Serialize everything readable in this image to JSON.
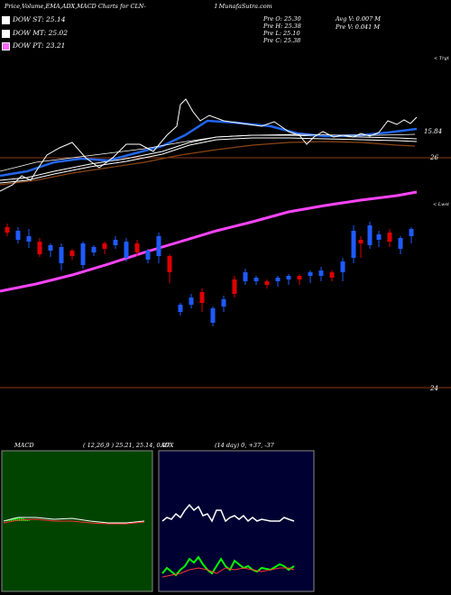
{
  "header": {
    "title_left": "Price,Volume,EMA,ADX,MACD Charts for CLN-",
    "title_right": "I MunafaSutra.com",
    "ohlc": {
      "open": "Pre  O: 25.30",
      "high": "Pre  H: 25.38",
      "low": "Pre  L: 25.10",
      "close": "Pre  C: 25.38"
    },
    "volume": {
      "avg": "Avg V: 0.007 M",
      "prev": "Pre  V: 0.041 M"
    }
  },
  "legend": [
    {
      "label": "DOW  ST: 25.14",
      "color": "#ffffff"
    },
    {
      "label": "DOW  MT: 25.02",
      "color": "#ffffff"
    },
    {
      "label": "DOW  PT: 23.21",
      "color": "#ff66ff"
    }
  ],
  "annotations": {
    "upper_price_1": "15.84",
    "upper_price_2": "26",
    "lower_price": "24",
    "upper_label": "< Trgt",
    "lower_label": "< Lwst"
  },
  "macd_panel": {
    "label": "MACD",
    "params": "( 12,26,9 ) 25.21, 25.14, 0.07"
  },
  "adx_panel": {
    "label": "ADX",
    "params": "(14  day) 0, +37, -37"
  },
  "chart_data": [
    {
      "type": "candlestick",
      "panel": "price",
      "series": [
        {
          "name": "DOW ST",
          "value": 25.14
        },
        {
          "name": "DOW MT",
          "value": 25.02
        },
        {
          "name": "DOW PT",
          "value": 23.21
        }
      ],
      "reference_lines": [
        15.84,
        26,
        24
      ],
      "last": {
        "open": 25.3,
        "high": 25.38,
        "low": 25.1,
        "close": 25.38
      }
    },
    {
      "type": "line",
      "panel": "macd",
      "values": {
        "macd": 25.21,
        "signal": 25.14,
        "histogram": 0.07
      }
    },
    {
      "type": "line",
      "panel": "adx",
      "values": {
        "adx": 0,
        "plus_di": 37,
        "minus_di": -37
      }
    }
  ],
  "colors": {
    "bg": "#000000",
    "up": "#1e5bff",
    "down": "#e00000",
    "ema_blue": "#2266ee",
    "ema_white": "#ffffff",
    "ema_brown": "#8b4513",
    "pt_magenta": "#ff44ff",
    "macd_bg": "#004400",
    "adx_bg": "#000033",
    "green": "#00ff00"
  }
}
